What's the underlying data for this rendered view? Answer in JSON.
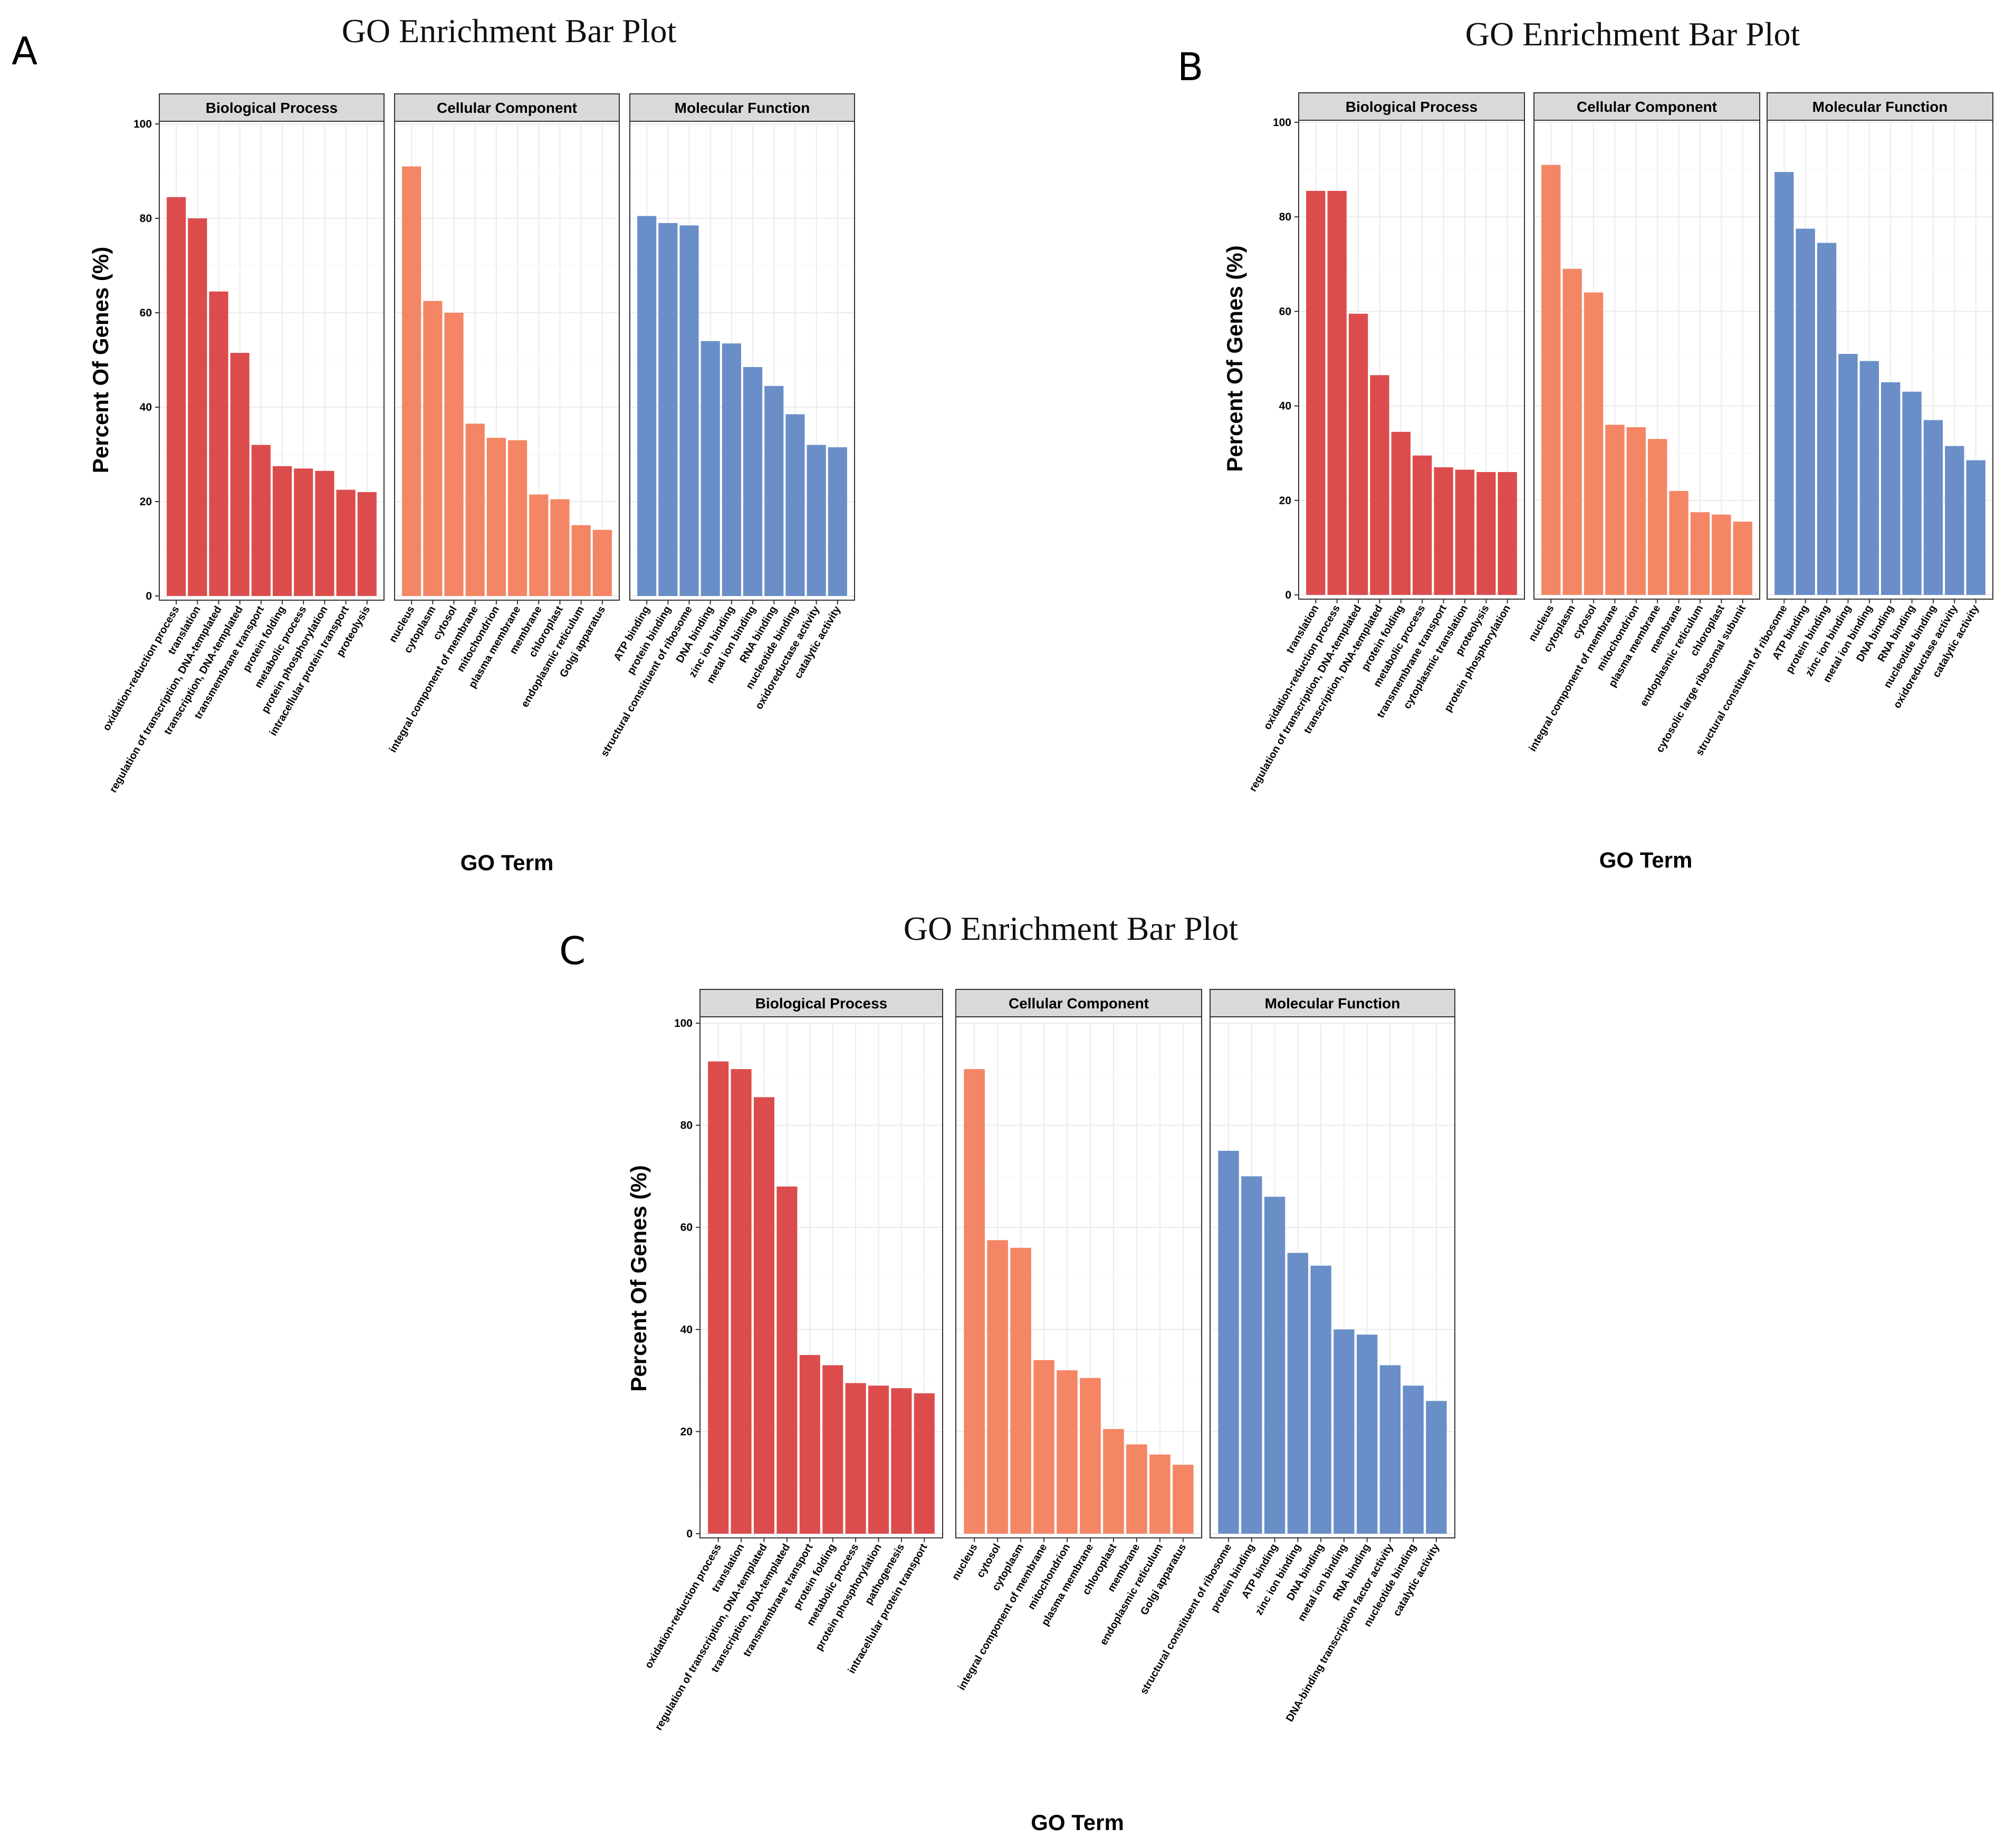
{
  "colors": {
    "Biological Process": "#dc4c4c",
    "Cellular Component": "#f48665",
    "Molecular Function": "#6a8fc8",
    "strip_fill": "#d9d9d9",
    "grid": "#ebebeb"
  },
  "chart_data": [
    {
      "panel": "A",
      "type": "bar",
      "title": "GO Enrichment Bar Plot",
      "xlabel": "GO Term",
      "ylabel": "Percent Of Genes (%)",
      "ylim": [
        0,
        100
      ],
      "yticks": [
        0,
        20,
        40,
        60,
        80,
        100
      ],
      "facets": [
        {
          "name": "Biological Process",
          "categories": [
            "oxidation-reduction process",
            "translation",
            "regulation of transcription, DNA-templated",
            "transcription, DNA-templated",
            "transmembrane transport",
            "protein folding",
            "metabolic process",
            "protein phosphorylation",
            "intracellular protein transport",
            "proteolysis"
          ],
          "values": [
            84.5,
            80,
            64.5,
            51.5,
            32,
            27.5,
            27,
            26.5,
            22.5,
            22
          ]
        },
        {
          "name": "Cellular Component",
          "categories": [
            "nucleus",
            "cytoplasm",
            "cytosol",
            "integral component of membrane",
            "mitochondrion",
            "plasma membrane",
            "membrane",
            "chloroplast",
            "endoplasmic reticulum",
            "Golgi apparatus"
          ],
          "values": [
            91,
            62.5,
            60,
            36.5,
            33.5,
            33,
            21.5,
            20.5,
            15,
            14
          ]
        },
        {
          "name": "Molecular Function",
          "categories": [
            "ATP binding",
            "protein binding",
            "structural constituent of ribosome",
            "DNA binding",
            "zinc ion binding",
            "metal ion binding",
            "RNA binding",
            "nucleotide binding",
            "oxidoreductase activity",
            "catalytic activity"
          ],
          "values": [
            80.5,
            79,
            78.5,
            54,
            53.5,
            48.5,
            44.5,
            38.5,
            32,
            31.5
          ]
        }
      ]
    },
    {
      "panel": "B",
      "type": "bar",
      "title": "GO Enrichment Bar Plot",
      "xlabel": "GO Term",
      "ylabel": "Percent Of Genes (%)",
      "ylim": [
        0,
        100
      ],
      "yticks": [
        0,
        20,
        40,
        60,
        80,
        100
      ],
      "facets": [
        {
          "name": "Biological Process",
          "categories": [
            "translation",
            "oxidation-reduction process",
            "regulation of transcription, DNA-templated",
            "transcription, DNA-templated",
            "protein folding",
            "metabolic process",
            "transmembrane transport",
            "cytoplasmic translation",
            "proteolysis",
            "protein phosphorylation"
          ],
          "values": [
            85.5,
            85.5,
            59.5,
            46.5,
            34.5,
            29.5,
            27,
            26.5,
            26,
            26
          ]
        },
        {
          "name": "Cellular Component",
          "categories": [
            "nucleus",
            "cytoplasm",
            "cytosol",
            "integral component of membrane",
            "mitochondrion",
            "plasma membrane",
            "membrane",
            "endoplasmic reticulum",
            "chloroplast",
            "cytosolic large ribosomal subunit"
          ],
          "values": [
            91,
            69,
            64,
            36,
            35.5,
            33,
            22,
            17.5,
            17,
            15.5
          ]
        },
        {
          "name": "Molecular Function",
          "categories": [
            "structural constituent of ribosome",
            "ATP binding",
            "protein binding",
            "zinc ion binding",
            "metal ion binding",
            "DNA binding",
            "RNA binding",
            "nucleotide binding",
            "oxidoreductase activity",
            "catalytic activity"
          ],
          "values": [
            89.5,
            77.5,
            74.5,
            51,
            49.5,
            45,
            43,
            37,
            31.5,
            28.5
          ]
        }
      ]
    },
    {
      "panel": "C",
      "type": "bar",
      "title": "GO Enrichment Bar Plot",
      "xlabel": "GO Term",
      "ylabel": "Percent Of Genes (%)",
      "ylim": [
        0,
        100
      ],
      "yticks": [
        0,
        20,
        40,
        60,
        80,
        100
      ],
      "facets": [
        {
          "name": "Biological Process",
          "categories": [
            "oxidation-reduction process",
            "translation",
            "regulation of transcription, DNA-templated",
            "transcription, DNA-templated",
            "transmembrane transport",
            "protein folding",
            "metabolic process",
            "protein phosphorylation",
            "pathogenesis",
            "intracellular protein transport"
          ],
          "values": [
            92.5,
            91,
            85.5,
            68,
            35,
            33,
            29.5,
            29,
            28.5,
            27.5
          ]
        },
        {
          "name": "Cellular Component",
          "categories": [
            "nucleus",
            "cytosol",
            "cytoplasm",
            "integral component of membrane",
            "mitochondrion",
            "plasma membrane",
            "chloroplast",
            "membrane",
            "endoplasmic reticulum",
            "Golgi apparatus"
          ],
          "values": [
            91,
            57.5,
            56,
            34,
            32,
            30.5,
            20.5,
            17.5,
            15.5,
            13.5
          ]
        },
        {
          "name": "Molecular Function",
          "categories": [
            "structural constituent of ribosome",
            "protein binding",
            "ATP binding",
            "zinc ion binding",
            "DNA binding",
            "metal ion binding",
            "RNA binding",
            "DNA-binding transcription factor activity",
            "nucleotide binding",
            "catalytic activity"
          ],
          "values": [
            75,
            70,
            66,
            55,
            52.5,
            40,
            39,
            33,
            29,
            26
          ]
        }
      ]
    }
  ]
}
